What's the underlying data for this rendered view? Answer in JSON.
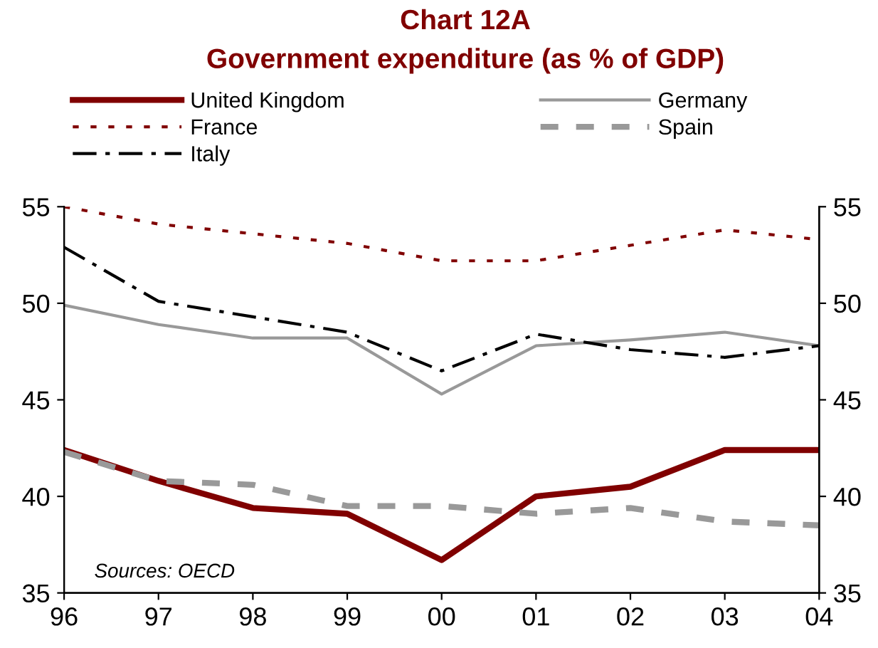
{
  "chart_data": {
    "type": "line",
    "title": "Chart 12A",
    "subtitle": "Government expenditure (as % of GDP)",
    "categories": [
      "96",
      "97",
      "98",
      "99",
      "00",
      "01",
      "02",
      "03",
      "04"
    ],
    "series": [
      {
        "name": "United Kingdom",
        "color": "#800000",
        "line_style": "solid",
        "values": [
          42.4,
          40.8,
          39.4,
          39.1,
          36.7,
          40.0,
          40.5,
          42.4,
          42.4
        ]
      },
      {
        "name": "Germany",
        "color": "#999999",
        "line_style": "solid",
        "values": [
          49.9,
          48.9,
          48.2,
          48.2,
          45.3,
          47.8,
          48.1,
          48.5,
          47.8
        ]
      },
      {
        "name": "France",
        "color": "#800000",
        "line_style": "dotted",
        "values": [
          55.0,
          54.1,
          53.6,
          53.1,
          52.2,
          52.2,
          53.0,
          53.8,
          53.3
        ]
      },
      {
        "name": "Spain",
        "color": "#999999",
        "line_style": "dashed",
        "values": [
          42.3,
          40.8,
          40.6,
          39.5,
          39.5,
          39.1,
          39.4,
          38.7,
          38.5
        ]
      },
      {
        "name": "Italy",
        "color": "#000000",
        "line_style": "dashdot",
        "values": [
          52.9,
          50.1,
          49.3,
          48.5,
          46.5,
          48.4,
          47.6,
          47.2,
          47.8
        ]
      }
    ],
    "ylim": [
      35,
      55
    ],
    "yticks": [
      35,
      40,
      45,
      50,
      55
    ],
    "y2lim": [
      35,
      55
    ],
    "y2ticks": [
      35,
      40,
      45,
      50,
      55
    ],
    "grid": false,
    "legend": "top",
    "marker": "none",
    "annotations": [
      "Sources: OECD"
    ]
  }
}
